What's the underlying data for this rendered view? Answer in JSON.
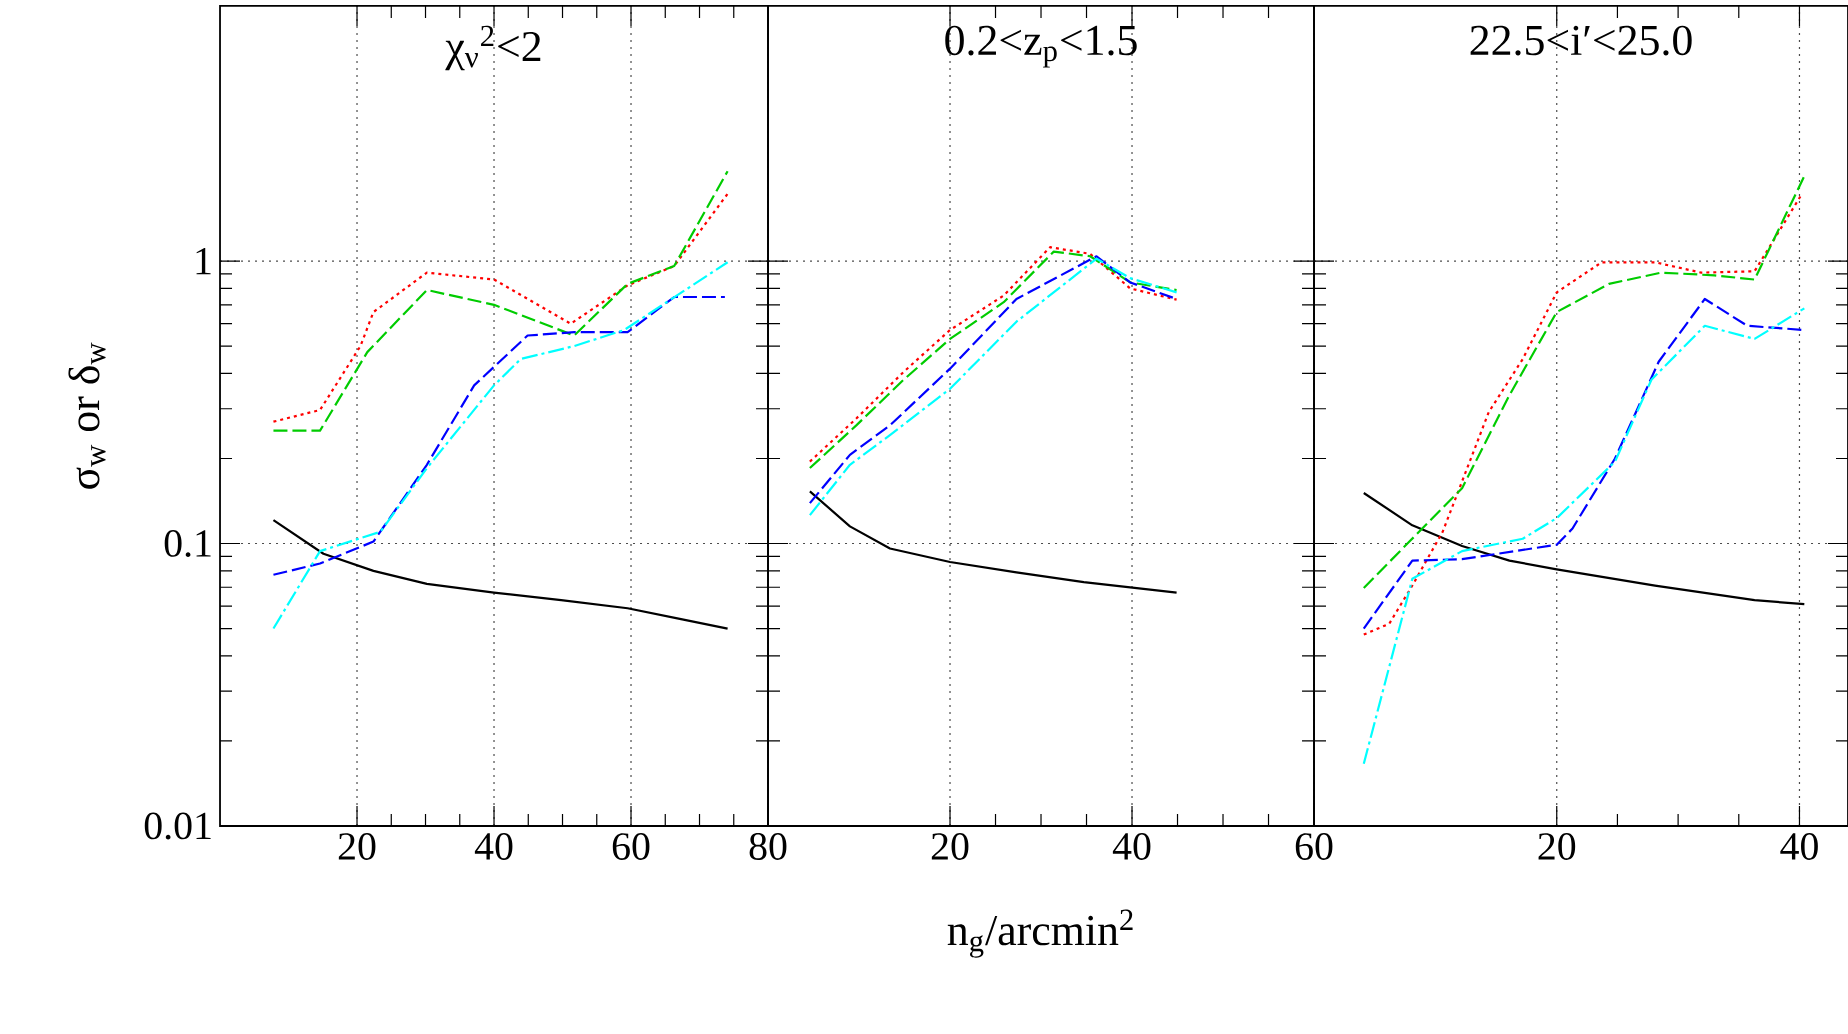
{
  "chart_data": [
    {
      "type": "line",
      "title": "χ$_{ν}$$^{2}$<2",
      "ylabel": "σ$_{w}$ or δ$_{w}$",
      "xlim": [
        0,
        80
      ],
      "ylim": [
        0.01,
        8
      ],
      "xticks": [
        20,
        40,
        60,
        80
      ],
      "yticks": [
        0.01,
        0.1,
        1
      ],
      "log": true,
      "grid": true,
      "series": [
        {
          "color": "#000000",
          "line_style": "solid",
          "x": [
            7.8,
            15.1,
            22.4,
            30.2,
            40,
            49.8,
            59.5,
            67.3,
            74.1
          ],
          "values": [
            0.121,
            0.092,
            0.08,
            0.072,
            0.067,
            0.063,
            0.059,
            0.054,
            0.05
          ]
        },
        {
          "color": "#ff0000",
          "line_style": "dotted",
          "x": [
            7.8,
            14.6,
            20.5,
            22.4,
            30.2,
            40,
            51.2,
            59.5,
            66.3,
            74.1
          ],
          "values": [
            0.27,
            0.297,
            0.5,
            0.66,
            0.91,
            0.86,
            0.6,
            0.82,
            0.96,
            1.73
          ]
        },
        {
          "color": "#00cc00",
          "line_style": "dashed",
          "x": [
            7.8,
            14.6,
            21.5,
            30.2,
            40,
            51.7,
            59.5,
            66.3,
            74.1
          ],
          "values": [
            0.251,
            0.251,
            0.476,
            0.79,
            0.7,
            0.545,
            0.83,
            0.96,
            2.08
          ]
        },
        {
          "color": "#0000ff",
          "line_style": "dashed",
          "x": [
            7.8,
            14.6,
            22.4,
            30.2,
            37.1,
            44.9,
            51.7,
            59.5,
            66.3,
            73.7
          ],
          "values": [
            0.0775,
            0.085,
            0.1016,
            0.19,
            0.363,
            0.545,
            0.56,
            0.56,
            0.746,
            0.746
          ]
        },
        {
          "color": "#00ffff",
          "line_style": "dashdot",
          "x": [
            7.8,
            14.6,
            23.4,
            30.2,
            40,
            43.9,
            51.7,
            59.0,
            74.1
          ],
          "values": [
            0.05,
            0.094,
            0.11,
            0.185,
            0.363,
            0.45,
            0.5,
            0.57,
            0.99
          ]
        }
      ]
    },
    {
      "type": "line",
      "title": "0.2<z$_{p}$<1.5",
      "xlabel": "n$_{g}$/arcmin$^{2}$",
      "xlim": [
        0,
        60
      ],
      "ylim": [
        0.01,
        8
      ],
      "xticks": [
        20,
        40,
        60
      ],
      "yticks": [
        0.01,
        0.1,
        1
      ],
      "log": true,
      "grid": true,
      "tick_labels": "x",
      "series": [
        {
          "color": "#000000",
          "line_style": "solid",
          "x": [
            4.6,
            9.0,
            13.4,
            20,
            27.3,
            34.7,
            44.9
          ],
          "values": [
            0.153,
            0.115,
            0.096,
            0.086,
            0.079,
            0.073,
            0.067
          ]
        },
        {
          "color": "#ff0000",
          "line_style": "dotted",
          "x": [
            4.6,
            9.7,
            14.9,
            20,
            25.9,
            31.0,
            35.4,
            39.8,
            44.9
          ],
          "values": [
            0.195,
            0.277,
            0.405,
            0.57,
            0.755,
            1.12,
            1.06,
            0.8,
            0.73
          ]
        },
        {
          "color": "#00cc00",
          "line_style": "dashed",
          "x": [
            4.6,
            9.7,
            14.9,
            20,
            25.9,
            31.4,
            35.4,
            39.8,
            44.9
          ],
          "values": [
            0.185,
            0.262,
            0.38,
            0.53,
            0.715,
            1.08,
            1.04,
            0.84,
            0.79
          ]
        },
        {
          "color": "#0000ff",
          "line_style": "dashed",
          "x": [
            4.6,
            9.0,
            13.4,
            20,
            27.3,
            36.1,
            39.8,
            44.9
          ],
          "values": [
            0.139,
            0.206,
            0.262,
            0.416,
            0.734,
            1.04,
            0.84,
            0.734
          ]
        },
        {
          "color": "#00ffff",
          "line_style": "dashdot",
          "x": [
            4.6,
            9.0,
            13.4,
            20,
            27.3,
            36.1,
            39.8,
            44.9
          ],
          "values": [
            0.126,
            0.19,
            0.242,
            0.353,
            0.61,
            1.02,
            0.87,
            0.775
          ]
        }
      ]
    },
    {
      "type": "line",
      "title": "22.5<i′<25.0",
      "xlim": [
        0,
        44
      ],
      "ylim": [
        0.01,
        8
      ],
      "xticks": [
        20,
        40
      ],
      "yticks": [
        0.01,
        0.1,
        1
      ],
      "log": true,
      "grid": true,
      "tick_labels": "x",
      "series": [
        {
          "color": "#000000",
          "line_style": "solid",
          "x": [
            4.1,
            8.1,
            12.2,
            16.1,
            20,
            28.1,
            36.3,
            40.4
          ],
          "values": [
            0.151,
            0.116,
            0.098,
            0.087,
            0.081,
            0.071,
            0.063,
            0.061
          ]
        },
        {
          "color": "#ff0000",
          "line_style": "dotted",
          "x": [
            4.1,
            6.2,
            8.1,
            10.6,
            14.4,
            17.2,
            20,
            23.7,
            28.1,
            31.9,
            36.3,
            40.1
          ],
          "values": [
            0.0476,
            0.052,
            0.071,
            0.11,
            0.292,
            0.45,
            0.775,
            0.99,
            0.99,
            0.91,
            0.92,
            1.7
          ]
        },
        {
          "color": "#00cc00",
          "line_style": "dashed",
          "x": [
            4.1,
            7.9,
            12.2,
            16.1,
            20,
            24.3,
            28.6,
            33.0,
            36.3,
            40.4
          ],
          "values": [
            0.0696,
            0.102,
            0.157,
            0.335,
            0.66,
            0.83,
            0.91,
            0.89,
            0.86,
            2.0
          ]
        },
        {
          "color": "#0000ff",
          "line_style": "dashed",
          "x": [
            4.1,
            8.1,
            12.2,
            20,
            21.3,
            24.8,
            28.4,
            32.2,
            35.7,
            40.4
          ],
          "values": [
            0.05,
            0.087,
            0.088,
            0.099,
            0.113,
            0.2,
            0.44,
            0.734,
            0.59,
            0.57
          ]
        },
        {
          "color": "#00ffff",
          "line_style": "dashdot",
          "x": [
            4.1,
            8.1,
            12.2,
            17.2,
            20,
            24.8,
            27.8,
            32.2,
            36.3,
            40.4
          ],
          "values": [
            0.0166,
            0.075,
            0.094,
            0.104,
            0.123,
            0.195,
            0.38,
            0.59,
            0.53,
            0.68
          ]
        }
      ]
    }
  ]
}
